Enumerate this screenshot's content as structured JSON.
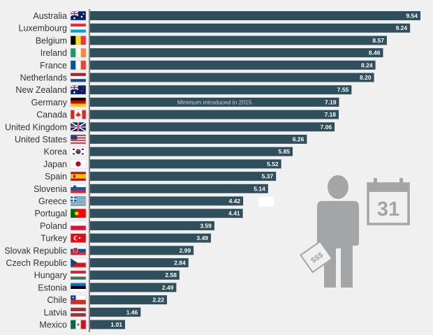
{
  "chart_data": {
    "type": "bar",
    "orientation": "horizontal",
    "categories": [
      "Australia",
      "Luxembourg",
      "Belgium",
      "Ireland",
      "France",
      "Netherlands",
      "New Zealand",
      "Germany",
      "Canada",
      "United Kingdom",
      "United States",
      "Korea",
      "Japan",
      "Spain",
      "Slovenia",
      "Greece",
      "Portugal",
      "Poland",
      "Turkey",
      "Slovak Republic",
      "Czech Republic",
      "Hungary",
      "Estonia",
      "Chile",
      "Latvia",
      "Mexico"
    ],
    "values": [
      9.54,
      9.24,
      8.57,
      8.46,
      8.24,
      8.2,
      7.55,
      7.19,
      7.18,
      7.06,
      6.26,
      5.85,
      5.52,
      5.37,
      5.14,
      4.42,
      4.41,
      3.59,
      3.49,
      2.99,
      2.84,
      2.58,
      2.49,
      2.22,
      1.46,
      1.01
    ],
    "value_labels": [
      "9.54",
      "9.24",
      "8.57",
      "8.46",
      "8.24",
      "8.20",
      "7.55",
      "7.19",
      "7.18",
      "7.06",
      "6.26",
      "5.85",
      "5.52",
      "5.37",
      "5.14",
      "4.42",
      "4.41",
      "3.59",
      "3.49",
      "2.99",
      "2.84",
      "2.58",
      "2.49",
      "2.22",
      "1.46",
      "1.01"
    ],
    "annotations": [
      {
        "category": "Germany",
        "text": "Minimum introduced in 2015"
      }
    ],
    "flags": [
      "flag-australia-icon",
      "flag-luxembourg-icon",
      "flag-belgium-icon",
      "flag-ireland-icon",
      "flag-france-icon",
      "flag-netherlands-icon",
      "flag-new-zealand-icon",
      "flag-germany-icon",
      "flag-canada-icon",
      "flag-united-kingdom-icon",
      "flag-united-states-icon",
      "flag-korea-icon",
      "flag-japan-icon",
      "flag-spain-icon",
      "flag-slovenia-icon",
      "flag-greece-icon",
      "flag-portugal-icon",
      "flag-poland-icon",
      "flag-turkey-icon",
      "flag-slovak-republic-icon",
      "flag-czech-republic-icon",
      "flag-hungary-icon",
      "flag-estonia-icon",
      "flag-chile-icon",
      "flag-latvia-icon",
      "flag-mexico-icon"
    ],
    "xlim": [
      0,
      9.6
    ],
    "grid": false,
    "legend": "none",
    "title": "",
    "xlabel": "",
    "ylabel": ""
  },
  "illustration": {
    "calendar_day": "31",
    "paper_symbol": "$$$"
  },
  "colors": {
    "background": "#f0f0f0",
    "bar": "#2f4f5c",
    "bar_text": "#ffffff",
    "label_text": "#333333",
    "icon_gray": "#a3a5a7"
  }
}
